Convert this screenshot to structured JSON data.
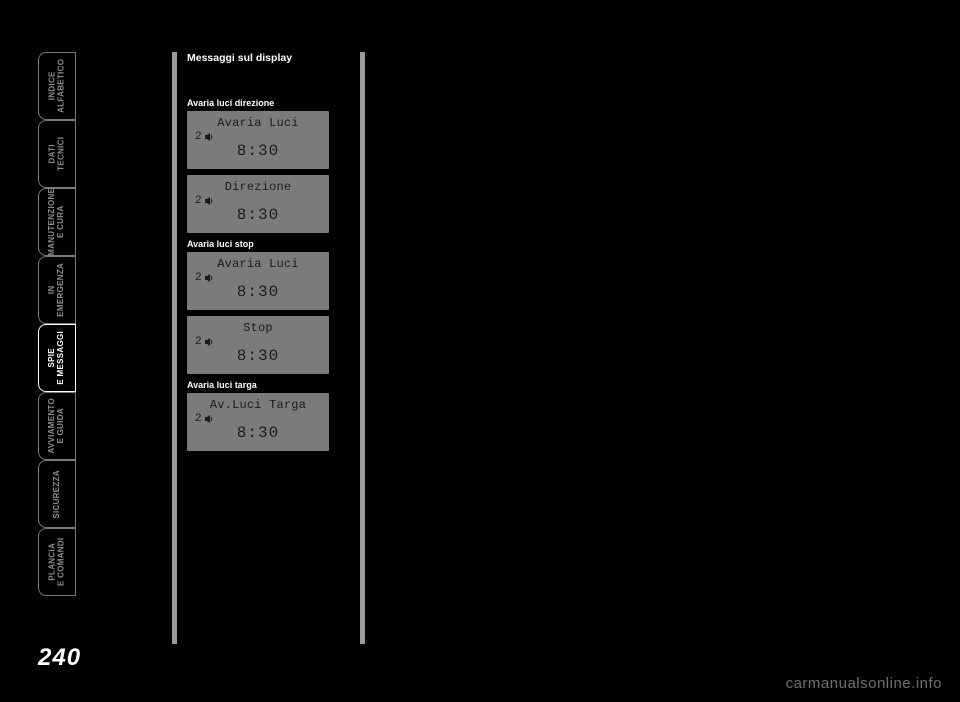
{
  "tabs": [
    {
      "label": "PLANCIA\nE COMANDI",
      "name": "tab-plancia"
    },
    {
      "label": "SICUREZZA",
      "name": "tab-sicurezza"
    },
    {
      "label": "AVVIAMENTO\nE GUIDA",
      "name": "tab-avviamento"
    },
    {
      "label": "SPIE\nE MESSAGGI",
      "name": "tab-spie",
      "active": true
    },
    {
      "label": "IN\nEMERGENZA",
      "name": "tab-emergenza"
    },
    {
      "label": "MANUTENZIONE\nE CURA",
      "name": "tab-manutenzione"
    },
    {
      "label": "DATI\nTECNICI",
      "name": "tab-dati"
    },
    {
      "label": "INDICE\nALFABETICO",
      "name": "tab-indice"
    }
  ],
  "col1": {
    "heading": "Messaggi sul display",
    "groups": [
      {
        "label": "Avaria luci direzione",
        "displays": [
          {
            "title": "Avaria Luci",
            "indicator": "2",
            "time": "8:30"
          },
          {
            "title": "Direzione",
            "indicator": "2",
            "time": "8:30"
          }
        ]
      },
      {
        "label": "Avaria luci stop",
        "displays": [
          {
            "title": "Avaria Luci",
            "indicator": "2",
            "time": "8:30"
          },
          {
            "title": "Stop",
            "indicator": "2",
            "time": "8:30"
          }
        ]
      },
      {
        "label": "Avaria luci targa",
        "displays": [
          {
            "title": "Av.Luci Targa",
            "indicator": "2",
            "time": "8:30"
          }
        ]
      }
    ]
  },
  "page_number": "240",
  "watermark": "carmanualsonline.info",
  "lcd_style": {
    "bg": "#7b7b7b",
    "text": "#1a1a1a"
  }
}
